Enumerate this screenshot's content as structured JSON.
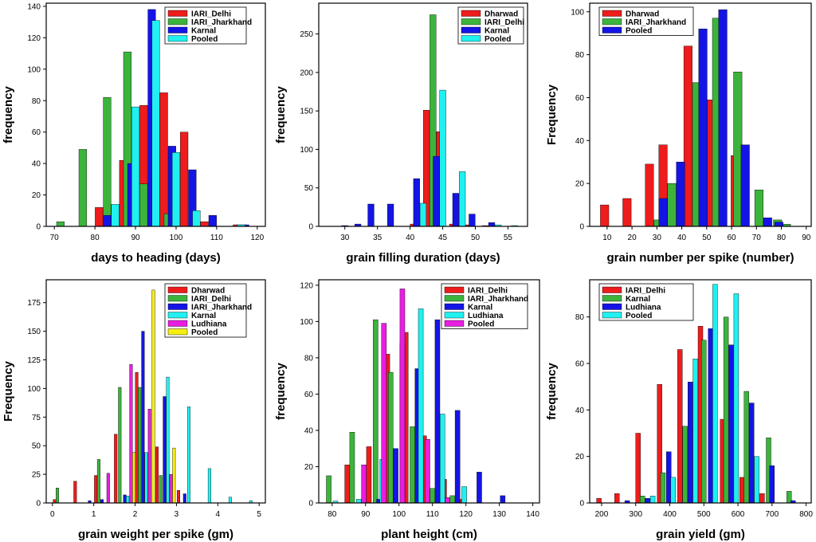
{
  "colors": {
    "red": "#ee1c1c",
    "green": "#3cb43c",
    "blue": "#1414e6",
    "cyan": "#20f0f0",
    "magenta": "#e81ee0",
    "yellow": "#f6ee10"
  },
  "chart_data": [
    {
      "type": "bar",
      "title": "",
      "xlabel": "days to heading (days)",
      "ylabel": "frequency",
      "xlim": [
        68,
        122
      ],
      "ylim": [
        0,
        142
      ],
      "xticks": [
        70,
        80,
        90,
        100,
        110,
        120
      ],
      "yticks": [
        0,
        20,
        40,
        60,
        80,
        100,
        120,
        140
      ],
      "barwidth": 1.9,
      "series": [
        {
          "name": "IARI_Delhi",
          "color": "red",
          "x": [
            81,
            87,
            92,
            97,
            102,
            107,
            115
          ],
          "values": [
            12,
            42,
            77,
            85,
            60,
            3,
            1
          ]
        },
        {
          "name": "IARI_Jharkhand",
          "color": "green",
          "x": [
            71.5,
            77,
            83,
            88,
            92,
            98
          ],
          "values": [
            3,
            49,
            82,
            111,
            27,
            8
          ]
        },
        {
          "name": "Karnal",
          "color": "blue",
          "x": [
            83,
            89,
            94,
            99,
            104,
            109,
            117
          ],
          "values": [
            7,
            40,
            138,
            51,
            36,
            7,
            1
          ]
        },
        {
          "name": "Pooled",
          "color": "cyan",
          "x": [
            85,
            90,
            95,
            100,
            105,
            116
          ],
          "values": [
            14,
            76,
            131,
            47,
            10,
            1
          ]
        }
      ]
    },
    {
      "type": "bar",
      "title": "",
      "xlabel": "grain filling duration (days)",
      "ylabel": "frequency",
      "xlim": [
        26,
        58
      ],
      "ylim": [
        0,
        290
      ],
      "xticks": [
        30,
        35,
        40,
        45,
        50,
        55
      ],
      "yticks": [
        0,
        50,
        100,
        150,
        200,
        250
      ],
      "barwidth": 0.95,
      "series": [
        {
          "name": "Dharwad",
          "color": "red",
          "x": [
            40.5,
            42.5,
            44.5,
            46.5,
            48.5,
            51.5
          ],
          "values": [
            3,
            151,
            123,
            3,
            2,
            1
          ]
        },
        {
          "name": "IARI_Delhi",
          "color": "green",
          "x": [
            41.5,
            43.5
          ],
          "values": [
            1,
            275
          ]
        },
        {
          "name": "Karnal",
          "color": "blue",
          "x": [
            30,
            32,
            34,
            37,
            41,
            44,
            47,
            49.5,
            52.5
          ],
          "values": [
            1,
            3,
            29,
            29,
            62,
            91,
            43,
            16,
            5
          ]
        },
        {
          "name": "Pooled",
          "color": "cyan",
          "x": [
            42,
            45,
            48,
            53.5,
            56
          ],
          "values": [
            30,
            177,
            71,
            2,
            1
          ]
        }
      ]
    },
    {
      "type": "bar",
      "title": "",
      "xlabel": "grain number per spike (number)",
      "ylabel": "Frequency",
      "xlim": [
        3,
        92
      ],
      "ylim": [
        0,
        104
      ],
      "xticks": [
        10,
        20,
        30,
        40,
        50,
        60,
        70,
        80,
        90
      ],
      "yticks": [
        0,
        20,
        40,
        60,
        80,
        100
      ],
      "barwidth": 3.4,
      "series": [
        {
          "name": "Dharwad",
          "color": "red",
          "x": [
            9,
            18,
            27,
            32.5,
            42.5,
            52,
            61.5,
            72
          ],
          "values": [
            10,
            13,
            29,
            38,
            84,
            59,
            33,
            2
          ]
        },
        {
          "name": "IARI_Jharkhand",
          "color": "green",
          "x": [
            30.5,
            36,
            46,
            54,
            62.5,
            71,
            78.5,
            82
          ],
          "values": [
            3,
            20,
            67,
            97,
            72,
            17,
            3,
            1
          ]
        },
        {
          "name": "Pooled",
          "color": "blue",
          "x": [
            32.5,
            39.5,
            48.5,
            56.5,
            65.5,
            74.5,
            79
          ],
          "values": [
            13,
            30,
            92,
            101,
            38,
            4,
            2
          ]
        }
      ]
    },
    {
      "type": "bar",
      "title": "",
      "xlabel": "grain weight per spike (gm)",
      "ylabel": "Frequency",
      "xlim": [
        -0.15,
        5.15
      ],
      "ylim": [
        0,
        195
      ],
      "xticks": [
        0,
        1,
        2,
        3,
        4,
        5
      ],
      "yticks": [
        0,
        25,
        50,
        75,
        100,
        125,
        150,
        175
      ],
      "barwidth": 0.07,
      "series": [
        {
          "name": "Dharwad",
          "color": "red",
          "x": [
            0.05,
            0.55,
            1.05,
            1.53,
            2.04,
            2.53,
            3.05
          ],
          "values": [
            3,
            19,
            24,
            60,
            114,
            49,
            11
          ]
        },
        {
          "name": "IARI_Delhi",
          "color": "green",
          "x": [
            0.12,
            1.12,
            1.63,
            2.11,
            2.62
          ],
          "values": [
            13,
            38,
            101,
            101,
            24
          ]
        },
        {
          "name": "IARI_Jharkhand",
          "color": "blue",
          "x": [
            0.9,
            1.2,
            1.75,
            2.19,
            2.71,
            3.2
          ],
          "values": [
            2,
            3,
            7,
            150,
            93,
            8
          ]
        },
        {
          "name": "Karnal",
          "color": "cyan",
          "x": [
            1.82,
            2.27,
            2.79,
            3.3,
            3.8,
            4.3,
            4.8
          ],
          "values": [
            6,
            44,
            110,
            84,
            30,
            5,
            2
          ]
        },
        {
          "name": "Ludhiana",
          "color": "magenta",
          "x": [
            1.35,
            1.9,
            2.35,
            2.87
          ],
          "values": [
            26,
            121,
            82,
            25
          ]
        },
        {
          "name": "Pooled",
          "color": "yellow",
          "x": [
            1.97,
            2.44,
            2.94
          ],
          "values": [
            44,
            186,
            48
          ]
        }
      ]
    },
    {
      "type": "bar",
      "title": "",
      "xlabel": "plant height (cm)",
      "ylabel": "frequency",
      "xlim": [
        76,
        142
      ],
      "ylim": [
        0,
        123
      ],
      "xticks": [
        80,
        90,
        100,
        110,
        120,
        130,
        140
      ],
      "yticks": [
        0,
        20,
        40,
        60,
        80,
        100,
        120
      ],
      "barwidth": 1.45,
      "series": [
        {
          "name": "IARI_Delhi",
          "color": "red",
          "x": [
            84.5,
            91,
            96.5,
            102,
            107.5,
            113.5,
            119
          ],
          "values": [
            21,
            31,
            82,
            94,
            37,
            13,
            2
          ]
        },
        {
          "name": "IARI_Jharkhand",
          "color": "green",
          "x": [
            79,
            86,
            93,
            97.5,
            104,
            110,
            116
          ],
          "values": [
            15,
            39,
            101,
            72,
            42,
            8,
            4
          ]
        },
        {
          "name": "Karnal",
          "color": "blue",
          "x": [
            94,
            99,
            105.5,
            111.5,
            117.5,
            124,
            131
          ],
          "values": [
            2,
            30,
            74,
            101,
            51,
            17,
            4
          ]
        },
        {
          "name": "Ludhiana",
          "color": "cyan",
          "x": [
            81,
            88,
            95,
            101,
            106.5,
            113,
            119.5
          ],
          "values": [
            1,
            2,
            24,
            88,
            107,
            49,
            9
          ]
        },
        {
          "name": "Pooled",
          "color": "magenta",
          "x": [
            89.5,
            95.5,
            101,
            108.5,
            114.5
          ],
          "values": [
            21,
            99,
            118,
            35,
            3
          ]
        }
      ]
    },
    {
      "type": "bar",
      "title": "",
      "xlabel": "grain yield (gm)",
      "ylabel": "frequency",
      "xlim": [
        165,
        815
      ],
      "ylim": [
        0,
        96
      ],
      "xticks": [
        200,
        300,
        400,
        500,
        600,
        700,
        800
      ],
      "yticks": [
        0,
        20,
        40,
        60,
        80
      ],
      "barwidth": 14,
      "series": [
        {
          "name": "IARI_Delhi",
          "color": "red",
          "x": [
            192,
            245,
            307,
            370,
            430,
            490,
            555,
            612,
            671
          ],
          "values": [
            2,
            4,
            30,
            51,
            66,
            76,
            36,
            11,
            4
          ]
        },
        {
          "name": "Karnal",
          "color": "green",
          "x": [
            320,
            380,
            445,
            500,
            565,
            625,
            690,
            750
          ],
          "values": [
            3,
            13,
            33,
            70,
            80,
            48,
            28,
            5
          ]
        },
        {
          "name": "Ludhiana",
          "color": "blue",
          "x": [
            275,
            335,
            397,
            460,
            520,
            580,
            640,
            700,
            762
          ],
          "values": [
            1,
            2,
            22,
            52,
            75,
            68,
            43,
            16,
            1
          ]
        },
        {
          "name": "Pooled",
          "color": "cyan",
          "x": [
            350,
            410,
            475,
            533,
            595,
            655
          ],
          "values": [
            3,
            11,
            62,
            94,
            90,
            20
          ]
        }
      ]
    }
  ]
}
